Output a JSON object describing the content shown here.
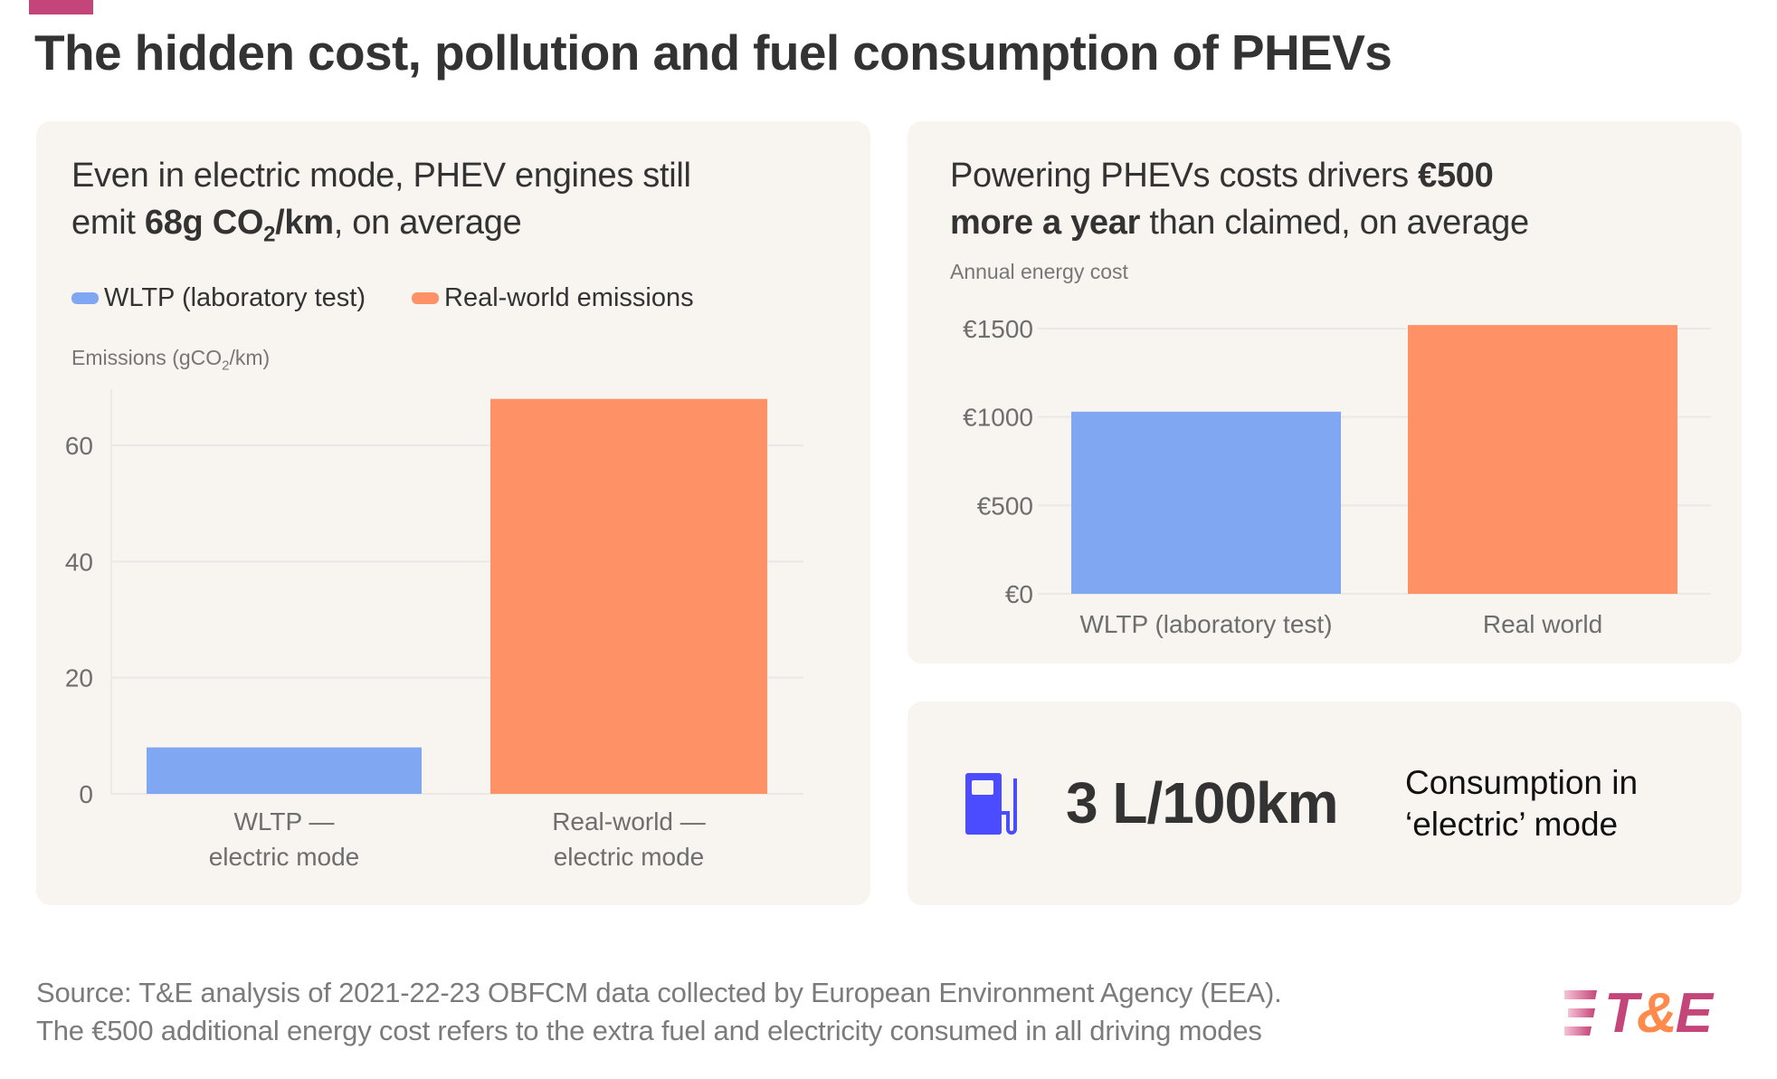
{
  "title": "The hidden cost, pollution and fuel consumption of PHEVs",
  "colors": {
    "accent": "#c4457a",
    "wltp": "#80a8f2",
    "real": "#ff9166",
    "card": "#f8f4ef",
    "fuel_icon": "#4b4bff",
    "logo_amp": "#ff8a4c"
  },
  "left_card": {
    "subtitle_l1": "Even in electric mode, PHEV engines still",
    "subtitle_l2_pre": "emit ",
    "subtitle_l2_bold": "68g CO",
    "subtitle_l2_sub": "2",
    "subtitle_l2_bold2": "/km",
    "subtitle_l2_post": ", on average",
    "legend": [
      {
        "label": "WLTP (laboratory test)"
      },
      {
        "label": "Real-world emissions"
      }
    ],
    "axis_label_pre": "Emissions (gCO",
    "axis_label_sub": "2",
    "axis_label_post": "/km)"
  },
  "right_card": {
    "subtitle_l1_pre": "Powering PHEVs costs drivers ",
    "subtitle_l1_bold": "€500",
    "subtitle_l2_bold": "more a year",
    "subtitle_l2_post": " than claimed, on average",
    "axis_label": "Annual energy cost"
  },
  "stat_card": {
    "icon": "fuel-pump-icon",
    "value": "3 L/100km",
    "label_l1": "Consumption in",
    "label_l2": "‘electric’ mode"
  },
  "source_l1": "Source: T&E analysis of 2021-22-23 OBFCM data collected by European Environment Agency (EEA).",
  "source_l2": "The €500 additional energy cost refers to the extra fuel and electricity consumed in all driving modes",
  "logo": "T&E",
  "chart_data": [
    {
      "type": "bar",
      "ylabel": "Emissions (gCO2/km)",
      "categories": [
        [
          "WLTP —",
          "electric mode"
        ],
        [
          "Real-world —",
          "electric mode"
        ]
      ],
      "values": [
        8,
        68
      ],
      "series_names": [
        "WLTP (laboratory test)",
        "Real-world emissions"
      ],
      "yticks": [
        0,
        20,
        40,
        60
      ],
      "ytick_labels": [
        "0",
        "20",
        "40",
        "60"
      ],
      "ylim": [
        0,
        70
      ],
      "grid": true,
      "legend": "top-left"
    },
    {
      "type": "bar",
      "ylabel": "Annual energy cost",
      "categories": [
        "WLTP (laboratory test)",
        "Real world"
      ],
      "values": [
        1030,
        1520
      ],
      "yticks": [
        0,
        500,
        1000,
        1500
      ],
      "ytick_labels": [
        "€0",
        "€500",
        "€1000",
        "€1500"
      ],
      "ylim": [
        0,
        1500
      ],
      "grid": true
    }
  ]
}
